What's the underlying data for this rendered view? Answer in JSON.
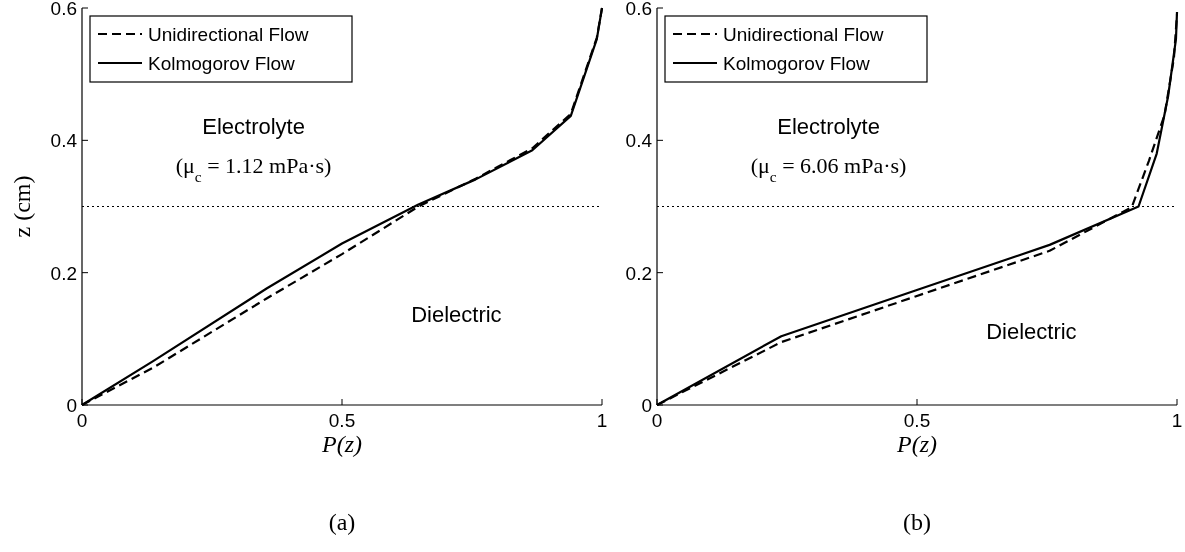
{
  "chart_data": [
    {
      "type": "line",
      "xlabel": "P(z)",
      "ylabel": "z (cm)",
      "xlim": [
        0,
        1
      ],
      "ylim": [
        0,
        0.6
      ],
      "xticks": [
        0,
        0.5,
        1
      ],
      "yticks": [
        0,
        0.2,
        0.4,
        0.6
      ],
      "legend": "top left",
      "grid": false,
      "series": [
        {
          "name": "Unidirectional Flow",
          "color": "#000000",
          "line_style": "dashed",
          "x": [
            0,
            0.136,
            0.355,
            0.5,
            0.647,
            0.757,
            0.866,
            0.94,
            0.99,
            1
          ],
          "values": [
            0,
            0.056,
            0.161,
            0.228,
            0.3,
            0.342,
            0.388,
            0.44,
            0.555,
            0.6
          ]
        },
        {
          "name": "Kolmogorov Flow",
          "color": "#000000",
          "line_style": "solid",
          "x": [
            0,
            0.136,
            0.355,
            0.5,
            0.647,
            0.757,
            0.866,
            0.94,
            0.99,
            1
          ],
          "values": [
            0,
            0.066,
            0.176,
            0.244,
            0.303,
            0.341,
            0.385,
            0.437,
            0.553,
            0.6
          ]
        }
      ],
      "ref_lines": [
        {
          "axis": "y",
          "value": 0.3,
          "line_style": "dotted"
        }
      ],
      "annotations": [
        "Electrolyte",
        "(μ$_{c}$ = 1.12 mPa·s)",
        "Dielectric",
        "(a)"
      ]
    },
    {
      "type": "line",
      "xlabel": "P(z)",
      "xlim": [
        0,
        1
      ],
      "ylim": [
        0,
        0.6
      ],
      "xticks": [
        0,
        0.5,
        1
      ],
      "yticks": [
        0,
        0.2,
        0.4,
        0.6
      ],
      "legend": "top left",
      "grid": false,
      "series": [
        {
          "name": "Unidirectional Flow",
          "color": "#000000",
          "line_style": "dashed",
          "x": [
            0,
            0.239,
            0.497,
            0.755,
            0.913,
            0.946,
            0.976,
            0.994,
            1
          ],
          "values": [
            0,
            0.095,
            0.164,
            0.233,
            0.299,
            0.369,
            0.438,
            0.524,
            0.59
          ]
        },
        {
          "name": "Kolmogorov Flow",
          "color": "#000000",
          "line_style": "solid",
          "x": [
            0,
            0.239,
            0.497,
            0.755,
            0.926,
            0.961,
            0.983,
            0.998,
            1
          ],
          "values": [
            0,
            0.104,
            0.173,
            0.242,
            0.3,
            0.38,
            0.467,
            0.553,
            0.594
          ]
        }
      ],
      "ref_lines": [
        {
          "axis": "y",
          "value": 0.3,
          "line_style": "dotted"
        }
      ],
      "annotations": [
        "Electrolyte",
        "(μ$_{c}$ = 6.06 mPa·s)",
        "Dielectric",
        "(b)"
      ]
    }
  ]
}
